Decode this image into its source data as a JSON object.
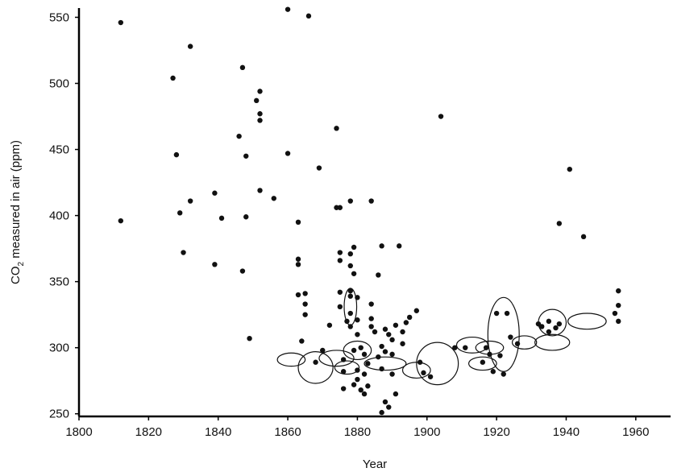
{
  "chart_data": {
    "type": "scatter",
    "xlabel": "Year",
    "ylabel_main": "CO",
    "ylabel_sub": "2",
    "ylabel_rest": " measured in air (ppm)",
    "xlim": [
      1800,
      1970
    ],
    "ylim": [
      248,
      557
    ],
    "x_ticks": [
      1800,
      1820,
      1840,
      1860,
      1880,
      1900,
      1920,
      1940,
      1960
    ],
    "y_ticks": [
      250,
      300,
      350,
      400,
      450,
      500,
      550
    ],
    "grid": false,
    "legend": "none",
    "point_color": "#111111",
    "points": [
      [
        1812,
        546
      ],
      [
        1812,
        396
      ],
      [
        1827,
        504
      ],
      [
        1828,
        446
      ],
      [
        1829,
        402
      ],
      [
        1830,
        372
      ],
      [
        1832,
        528
      ],
      [
        1832,
        411
      ],
      [
        1839,
        417
      ],
      [
        1839,
        363
      ],
      [
        1841,
        398
      ],
      [
        1846,
        460
      ],
      [
        1847,
        512
      ],
      [
        1847,
        358
      ],
      [
        1848,
        445
      ],
      [
        1848,
        399
      ],
      [
        1849,
        307
      ],
      [
        1851,
        487
      ],
      [
        1852,
        494
      ],
      [
        1852,
        477
      ],
      [
        1852,
        472
      ],
      [
        1852,
        419
      ],
      [
        1856,
        413
      ],
      [
        1860,
        556
      ],
      [
        1860,
        447
      ],
      [
        1863,
        395
      ],
      [
        1863,
        367
      ],
      [
        1863,
        363
      ],
      [
        1863,
        340
      ],
      [
        1864,
        305
      ],
      [
        1865,
        341
      ],
      [
        1865,
        333
      ],
      [
        1865,
        325
      ],
      [
        1866,
        551
      ],
      [
        1868,
        289
      ],
      [
        1869,
        436
      ],
      [
        1870,
        298
      ],
      [
        1872,
        317
      ],
      [
        1874,
        466
      ],
      [
        1874,
        406
      ],
      [
        1875,
        406
      ],
      [
        1875,
        372
      ],
      [
        1875,
        366
      ],
      [
        1875,
        342
      ],
      [
        1875,
        331
      ],
      [
        1876,
        291
      ],
      [
        1876,
        282
      ],
      [
        1876,
        269
      ],
      [
        1877,
        320
      ],
      [
        1878,
        411
      ],
      [
        1878,
        371
      ],
      [
        1878,
        362
      ],
      [
        1878,
        343
      ],
      [
        1878,
        339
      ],
      [
        1878,
        326
      ],
      [
        1878,
        316
      ],
      [
        1879,
        376
      ],
      [
        1879,
        356
      ],
      [
        1879,
        298
      ],
      [
        1879,
        272
      ],
      [
        1880,
        338
      ],
      [
        1880,
        321
      ],
      [
        1880,
        310
      ],
      [
        1880,
        283
      ],
      [
        1880,
        276
      ],
      [
        1881,
        300
      ],
      [
        1881,
        268
      ],
      [
        1882,
        295
      ],
      [
        1882,
        280
      ],
      [
        1882,
        265
      ],
      [
        1883,
        288
      ],
      [
        1883,
        271
      ],
      [
        1884,
        411
      ],
      [
        1884,
        333
      ],
      [
        1884,
        322
      ],
      [
        1884,
        316
      ],
      [
        1885,
        312
      ],
      [
        1886,
        355
      ],
      [
        1886,
        293
      ],
      [
        1887,
        377
      ],
      [
        1887,
        301
      ],
      [
        1887,
        284
      ],
      [
        1887,
        251
      ],
      [
        1888,
        314
      ],
      [
        1888,
        297
      ],
      [
        1888,
        259
      ],
      [
        1889,
        310
      ],
      [
        1889,
        255
      ],
      [
        1890,
        306
      ],
      [
        1890,
        295
      ],
      [
        1890,
        280
      ],
      [
        1891,
        317
      ],
      [
        1891,
        265
      ],
      [
        1892,
        377
      ],
      [
        1893,
        312
      ],
      [
        1893,
        303
      ],
      [
        1894,
        319
      ],
      [
        1895,
        323
      ],
      [
        1897,
        328
      ],
      [
        1898,
        289
      ],
      [
        1899,
        281
      ],
      [
        1901,
        278
      ],
      [
        1904,
        475
      ],
      [
        1908,
        300
      ],
      [
        1911,
        300
      ],
      [
        1916,
        289
      ],
      [
        1917,
        300
      ],
      [
        1918,
        295
      ],
      [
        1919,
        282
      ],
      [
        1920,
        326
      ],
      [
        1921,
        294
      ],
      [
        1922,
        280
      ],
      [
        1923,
        326
      ],
      [
        1924,
        308
      ],
      [
        1926,
        303
      ],
      [
        1932,
        318
      ],
      [
        1933,
        316
      ],
      [
        1935,
        320
      ],
      [
        1935,
        312
      ],
      [
        1937,
        315
      ],
      [
        1938,
        394
      ],
      [
        1938,
        318
      ],
      [
        1941,
        435
      ],
      [
        1945,
        384
      ],
      [
        1954,
        326
      ],
      [
        1955,
        343
      ],
      [
        1955,
        332
      ],
      [
        1955,
        320
      ]
    ],
    "clusters": [
      {
        "cx": 1861,
        "cy": 291,
        "rx": 4,
        "ry": 5
      },
      {
        "cx": 1868,
        "cy": 285,
        "rx": 5,
        "ry": 12
      },
      {
        "cx": 1874,
        "cy": 292,
        "rx": 5,
        "ry": 6
      },
      {
        "cx": 1877,
        "cy": 285,
        "rx": 3.5,
        "ry": 5
      },
      {
        "cx": 1878,
        "cy": 331,
        "rx": 1.8,
        "ry": 14
      },
      {
        "cx": 1880,
        "cy": 298,
        "rx": 4,
        "ry": 7
      },
      {
        "cx": 1888,
        "cy": 288,
        "rx": 6,
        "ry": 5
      },
      {
        "cx": 1897,
        "cy": 283,
        "rx": 4,
        "ry": 6
      },
      {
        "cx": 1903,
        "cy": 288,
        "rx": 6,
        "ry": 16
      },
      {
        "cx": 1913,
        "cy": 302,
        "rx": 4.5,
        "ry": 6
      },
      {
        "cx": 1916,
        "cy": 288,
        "rx": 4,
        "ry": 5
      },
      {
        "cx": 1918,
        "cy": 300,
        "rx": 4,
        "ry": 5
      },
      {
        "cx": 1922,
        "cy": 310,
        "rx": 4.5,
        "ry": 28
      },
      {
        "cx": 1928,
        "cy": 304,
        "rx": 3.5,
        "ry": 5
      },
      {
        "cx": 1936,
        "cy": 319,
        "rx": 4,
        "ry": 10
      },
      {
        "cx": 1936,
        "cy": 304,
        "rx": 5,
        "ry": 6
      },
      {
        "cx": 1946,
        "cy": 320,
        "rx": 5.5,
        "ry": 6
      }
    ]
  }
}
